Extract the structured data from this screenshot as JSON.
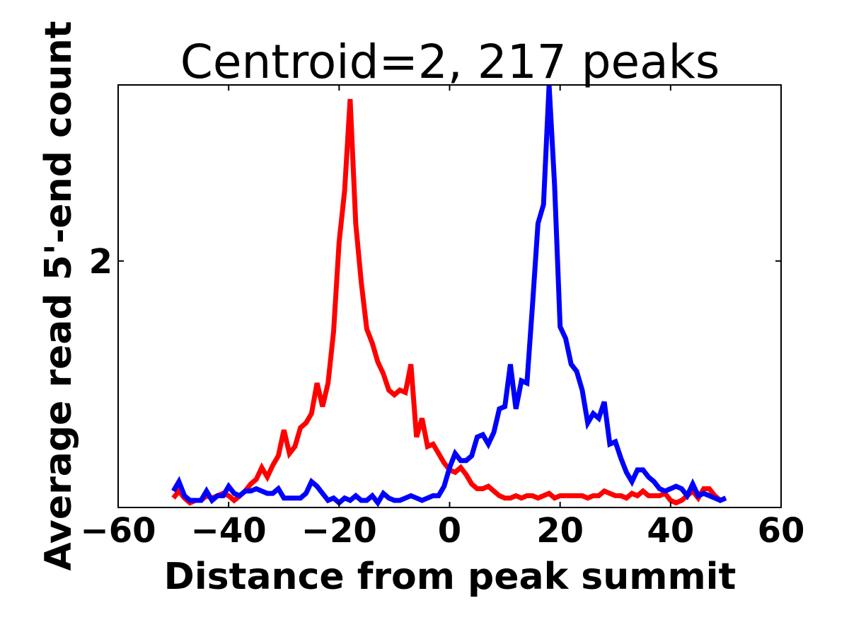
{
  "chart_data": {
    "type": "line",
    "title": "Centroid=2, 217 peaks",
    "xlabel": "Distance from peak summit",
    "ylabel": "Average read 5'-end count",
    "xlim": [
      -60,
      60
    ],
    "ylim": [
      0.95,
      2.75
    ],
    "xticks": [
      -60,
      -40,
      -20,
      0,
      20,
      40,
      60
    ],
    "xtick_labels": [
      "−60",
      "−40",
      "−20",
      "0",
      "20",
      "40",
      "60"
    ],
    "yticks": [
      2
    ],
    "ytick_labels": [
      "2"
    ],
    "grid": false,
    "x": [
      -50,
      -49,
      -48,
      -47,
      -46,
      -45,
      -44,
      -43,
      -42,
      -41,
      -40,
      -39,
      -38,
      -37,
      -36,
      -35,
      -34,
      -33,
      -32,
      -31,
      -30,
      -29,
      -28,
      -27,
      -26,
      -25,
      -24,
      -23,
      -22,
      -21,
      -20,
      -19,
      -18,
      -17,
      -16,
      -15,
      -14,
      -13,
      -12,
      -11,
      -10,
      -9,
      -8,
      -7,
      -6,
      -5,
      -4,
      -3,
      -2,
      -1,
      0,
      1,
      2,
      3,
      4,
      5,
      6,
      7,
      8,
      9,
      10,
      11,
      12,
      13,
      14,
      15,
      16,
      17,
      18,
      19,
      20,
      21,
      22,
      23,
      24,
      25,
      26,
      27,
      28,
      29,
      30,
      31,
      32,
      33,
      34,
      35,
      36,
      37,
      38,
      39,
      40,
      41,
      42,
      43,
      44,
      45,
      46,
      47,
      48,
      49,
      50
    ],
    "series": [
      {
        "color": "#ff0000",
        "values": [
          0.99,
          1.02,
          0.99,
          0.97,
          0.98,
          0.98,
          1.0,
          0.99,
          1.0,
          1.01,
          1.0,
          0.98,
          1.0,
          1.02,
          1.05,
          1.07,
          1.12,
          1.08,
          1.13,
          1.17,
          1.28,
          1.18,
          1.21,
          1.29,
          1.31,
          1.35,
          1.48,
          1.38,
          1.48,
          1.7,
          2.08,
          2.3,
          2.69,
          2.16,
          1.91,
          1.71,
          1.65,
          1.57,
          1.52,
          1.45,
          1.43,
          1.45,
          1.44,
          1.56,
          1.25,
          1.33,
          1.21,
          1.22,
          1.18,
          1.14,
          1.11,
          1.1,
          1.12,
          1.09,
          1.05,
          1.03,
          1.03,
          1.04,
          1.02,
          1.0,
          0.99,
          0.99,
          1.0,
          0.99,
          1.0,
          1.0,
          0.99,
          1.0,
          1.01,
          0.99,
          1.0,
          1.0,
          1.0,
          1.0,
          1.0,
          0.99,
          1.0,
          1.0,
          1.02,
          1.01,
          1.0,
          1.0,
          0.99,
          1.01,
          1.0,
          1.02,
          1.0,
          1.0,
          1.0,
          1.01,
          0.98,
          0.97,
          0.98,
          1.0,
          1.02,
          0.99,
          1.03,
          1.03,
          1.0,
          0.98,
          0.99
        ]
      },
      {
        "color": "#0000ff",
        "values": [
          1.02,
          1.06,
          1.0,
          0.98,
          0.98,
          0.98,
          1.02,
          0.98,
          1.0,
          1.0,
          1.04,
          1.01,
          1.0,
          1.02,
          1.02,
          1.03,
          1.02,
          1.01,
          1.01,
          1.03,
          0.99,
          0.99,
          0.99,
          0.99,
          1.01,
          1.06,
          1.04,
          1.01,
          0.98,
          0.99,
          0.97,
          0.99,
          0.98,
          1.0,
          0.98,
          0.98,
          1.0,
          0.97,
          1.01,
          0.99,
          0.98,
          0.98,
          0.99,
          1.0,
          0.99,
          0.98,
          0.99,
          1.0,
          1.0,
          1.04,
          1.12,
          1.18,
          1.15,
          1.15,
          1.17,
          1.25,
          1.26,
          1.22,
          1.27,
          1.37,
          1.38,
          1.56,
          1.37,
          1.49,
          1.48,
          1.81,
          2.16,
          2.24,
          2.75,
          2.32,
          1.72,
          1.67,
          1.56,
          1.53,
          1.45,
          1.31,
          1.35,
          1.33,
          1.4,
          1.22,
          1.23,
          1.16,
          1.1,
          1.06,
          1.11,
          1.11,
          1.08,
          1.06,
          1.03,
          1.02,
          1.03,
          1.04,
          1.03,
          1.0,
          1.05,
          1.0,
          1.01,
          1.0,
          0.99,
          0.98,
          0.99
        ]
      }
    ]
  }
}
